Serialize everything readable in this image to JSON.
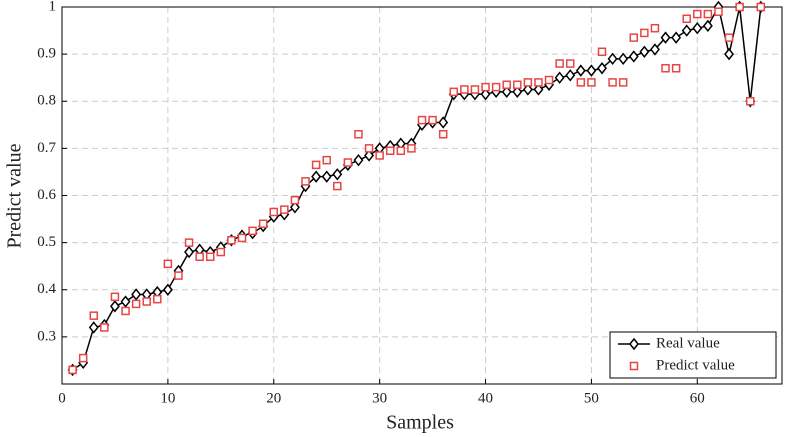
{
  "chart_data": {
    "type": "line",
    "xlabel": "Samples",
    "ylabel": "Predict value",
    "x": [
      1,
      2,
      3,
      4,
      5,
      6,
      7,
      8,
      9,
      10,
      11,
      12,
      13,
      14,
      15,
      16,
      17,
      18,
      19,
      20,
      21,
      22,
      23,
      24,
      25,
      26,
      27,
      28,
      29,
      30,
      31,
      32,
      33,
      34,
      35,
      36,
      37,
      38,
      39,
      40,
      41,
      42,
      43,
      44,
      45,
      46,
      47,
      48,
      49,
      50,
      51,
      52,
      53,
      54,
      55,
      56,
      57,
      58,
      59,
      60,
      61,
      62,
      63,
      64,
      65,
      66
    ],
    "series": [
      {
        "name": "Real value",
        "color": "#000000",
        "marker": "diamond",
        "line": true,
        "values": [
          0.23,
          0.245,
          0.32,
          0.325,
          0.365,
          0.375,
          0.39,
          0.39,
          0.395,
          0.4,
          0.44,
          0.48,
          0.485,
          0.48,
          0.49,
          0.505,
          0.515,
          0.52,
          0.535,
          0.555,
          0.56,
          0.575,
          0.62,
          0.64,
          0.64,
          0.645,
          0.665,
          0.675,
          0.685,
          0.7,
          0.705,
          0.71,
          0.71,
          0.75,
          0.755,
          0.755,
          0.815,
          0.815,
          0.815,
          0.815,
          0.82,
          0.82,
          0.82,
          0.825,
          0.825,
          0.835,
          0.85,
          0.855,
          0.865,
          0.865,
          0.87,
          0.89,
          0.89,
          0.895,
          0.905,
          0.91,
          0.935,
          0.935,
          0.95,
          0.955,
          0.96,
          1.0,
          0.9,
          1.0,
          0.8,
          1.0
        ]
      },
      {
        "name": "Predict value",
        "color": "#e64545",
        "marker": "square",
        "line": false,
        "values": [
          0.23,
          0.255,
          0.345,
          0.32,
          0.385,
          0.355,
          0.37,
          0.375,
          0.38,
          0.455,
          0.43,
          0.5,
          0.47,
          0.47,
          0.48,
          0.505,
          0.51,
          0.525,
          0.54,
          0.565,
          0.57,
          0.59,
          0.63,
          0.665,
          0.675,
          0.62,
          0.67,
          0.73,
          0.7,
          0.685,
          0.695,
          0.695,
          0.7,
          0.76,
          0.76,
          0.73,
          0.82,
          0.825,
          0.825,
          0.83,
          0.83,
          0.835,
          0.835,
          0.84,
          0.84,
          0.845,
          0.88,
          0.88,
          0.84,
          0.84,
          0.905,
          0.84,
          0.84,
          0.935,
          0.945,
          0.955,
          0.87,
          0.87,
          0.975,
          0.985,
          0.985,
          0.99,
          0.935,
          1.0,
          0.8,
          1.0
        ]
      }
    ],
    "xlim": [
      0,
      68
    ],
    "xticks": [
      0,
      10,
      20,
      30,
      40,
      50,
      60
    ],
    "ylim": [
      0.2,
      1.0
    ],
    "yticks": [
      0.3,
      0.4,
      0.5,
      0.6,
      0.7,
      0.8,
      0.9,
      1
    ],
    "grid": true,
    "legend": "lower right"
  }
}
